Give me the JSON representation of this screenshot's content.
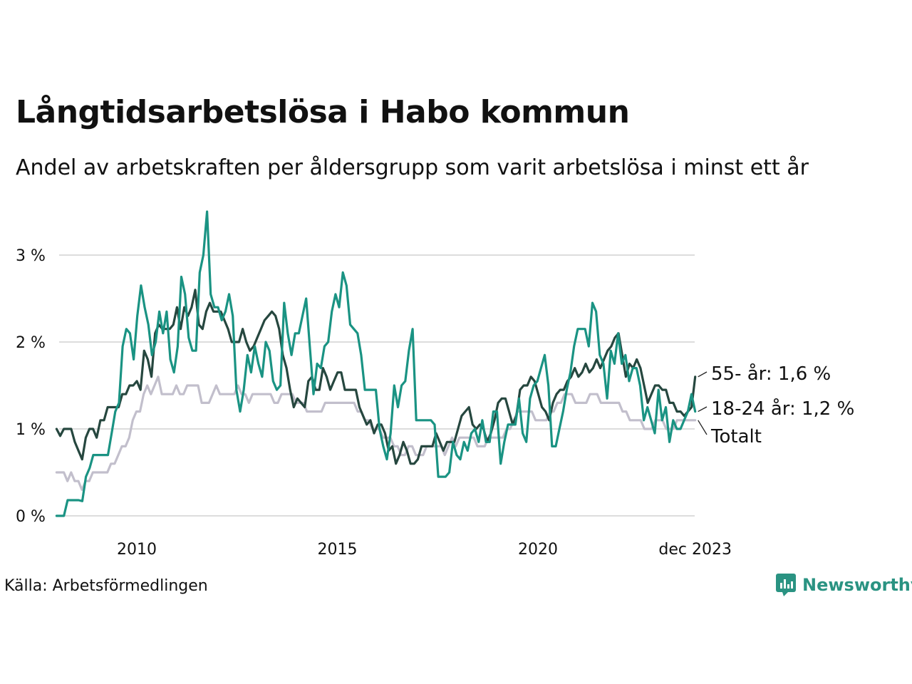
{
  "header": {
    "title": "Långtidsarbetslösa i Habo kommun",
    "subtitle": "Andel av arbetskraften per åldersgrupp som varit arbetslösa i minst ett år"
  },
  "footer": {
    "source": "Källa: Arbetsförmedlingen",
    "brand": "Newsworthy"
  },
  "colors": {
    "youth": "#1a9383",
    "senior": "#26473f",
    "total": "#c2bfcc",
    "grid": "#dddddd"
  },
  "chart_data": {
    "type": "line",
    "title": "Långtidsarbetslösa i Habo kommun",
    "subtitle": "Andel av arbetskraften per åldersgrupp som varit arbetslösa i minst ett år",
    "xlabel": "",
    "ylabel": "",
    "x_start": 2008.0,
    "x_step_years": 0.08333,
    "xlim": [
      2008.0,
      2023.92
    ],
    "ylim": [
      0,
      3.5
    ],
    "y_ticks": [
      0,
      1,
      2,
      3
    ],
    "y_tick_labels": [
      "0 %",
      "1 %",
      "2 %",
      "3 %"
    ],
    "x_ticks": [
      2010,
      2015,
      2020,
      2023.92
    ],
    "x_tick_labels": [
      "2010",
      "2015",
      "2020",
      "dec 2023"
    ],
    "grid": true,
    "series": [
      {
        "name": "Totalt",
        "key": "total",
        "end_label": "Totalt",
        "values": [
          0.5,
          0.5,
          0.5,
          0.4,
          0.5,
          0.4,
          0.4,
          0.3,
          0.4,
          0.4,
          0.5,
          0.5,
          0.5,
          0.5,
          0.5,
          0.6,
          0.6,
          0.7,
          0.8,
          0.8,
          0.9,
          1.1,
          1.2,
          1.2,
          1.4,
          1.5,
          1.4,
          1.5,
          1.6,
          1.4,
          1.4,
          1.4,
          1.4,
          1.5,
          1.4,
          1.4,
          1.5,
          1.5,
          1.5,
          1.5,
          1.3,
          1.3,
          1.3,
          1.4,
          1.5,
          1.4,
          1.4,
          1.4,
          1.4,
          1.4,
          1.5,
          1.4,
          1.4,
          1.3,
          1.4,
          1.4,
          1.4,
          1.4,
          1.4,
          1.4,
          1.3,
          1.3,
          1.4,
          1.4,
          1.4,
          1.4,
          1.3,
          1.3,
          1.3,
          1.2,
          1.2,
          1.2,
          1.2,
          1.2,
          1.3,
          1.3,
          1.3,
          1.3,
          1.3,
          1.3,
          1.3,
          1.3,
          1.3,
          1.2,
          1.2,
          1.1,
          1.1,
          1.0,
          1.0,
          1.0,
          0.9,
          0.9,
          0.9,
          0.8,
          0.8,
          0.7,
          0.7,
          0.8,
          0.8,
          0.7,
          0.7,
          0.7,
          0.8,
          0.8,
          0.8,
          0.8,
          0.8,
          0.7,
          0.8,
          0.9,
          0.8,
          0.9,
          0.9,
          0.9,
          0.9,
          0.9,
          0.8,
          0.8,
          0.8,
          0.9,
          0.9,
          0.9,
          0.9,
          0.9,
          1.0,
          1.0,
          1.1,
          1.2,
          1.2,
          1.2,
          1.2,
          1.2,
          1.1,
          1.1,
          1.1,
          1.1,
          1.2,
          1.2,
          1.3,
          1.3,
          1.4,
          1.4,
          1.4,
          1.3,
          1.3,
          1.3,
          1.3,
          1.4,
          1.4,
          1.4,
          1.3,
          1.3,
          1.3,
          1.3,
          1.3,
          1.3,
          1.2,
          1.2,
          1.1,
          1.1,
          1.1,
          1.1,
          1.0,
          1.0,
          1.0,
          1.1,
          1.1,
          1.1,
          1.0,
          1.0,
          1.0,
          1.1,
          1.1,
          1.1,
          1.1,
          1.1,
          1.1
        ]
      },
      {
        "name": "55- år",
        "key": "senior",
        "end_label": "55- år: 1,6 %",
        "values": [
          1.0,
          0.92,
          1.0,
          1.0,
          1.0,
          0.85,
          0.75,
          0.65,
          0.9,
          1.0,
          1.0,
          0.9,
          1.1,
          1.1,
          1.25,
          1.25,
          1.25,
          1.25,
          1.4,
          1.4,
          1.5,
          1.5,
          1.55,
          1.45,
          1.9,
          1.8,
          1.6,
          2.1,
          2.2,
          2.15,
          2.15,
          2.15,
          2.2,
          2.4,
          2.15,
          2.4,
          2.3,
          2.4,
          2.6,
          2.2,
          2.15,
          2.35,
          2.45,
          2.35,
          2.35,
          2.35,
          2.25,
          2.15,
          2.0,
          2.0,
          2.0,
          2.15,
          2.0,
          1.9,
          1.95,
          2.05,
          2.15,
          2.25,
          2.3,
          2.35,
          2.3,
          2.15,
          1.85,
          1.7,
          1.45,
          1.25,
          1.35,
          1.3,
          1.25,
          1.55,
          1.6,
          1.45,
          1.45,
          1.7,
          1.6,
          1.45,
          1.55,
          1.65,
          1.65,
          1.45,
          1.45,
          1.45,
          1.45,
          1.25,
          1.15,
          1.05,
          1.1,
          0.95,
          1.05,
          1.05,
          0.95,
          0.75,
          0.8,
          0.6,
          0.7,
          0.85,
          0.75,
          0.6,
          0.6,
          0.65,
          0.8,
          0.8,
          0.8,
          0.8,
          0.95,
          0.85,
          0.75,
          0.85,
          0.85,
          0.85,
          1.0,
          1.15,
          1.2,
          1.25,
          1.05,
          1.0,
          1.05,
          1.0,
          0.85,
          0.95,
          1.1,
          1.3,
          1.35,
          1.35,
          1.2,
          1.05,
          1.15,
          1.45,
          1.5,
          1.5,
          1.6,
          1.55,
          1.4,
          1.25,
          1.2,
          1.1,
          1.3,
          1.4,
          1.45,
          1.45,
          1.55,
          1.6,
          1.7,
          1.6,
          1.65,
          1.75,
          1.65,
          1.7,
          1.8,
          1.7,
          1.8,
          1.9,
          1.95,
          2.05,
          2.1,
          1.85,
          1.6,
          1.75,
          1.7,
          1.8,
          1.7,
          1.5,
          1.3,
          1.4,
          1.5,
          1.5,
          1.45,
          1.45,
          1.3,
          1.3,
          1.2,
          1.2,
          1.15,
          1.2,
          1.25,
          1.6
        ]
      },
      {
        "name": "18-24 år",
        "key": "youth",
        "end_label": "18-24 år: 1,2 %",
        "values": [
          0.0,
          0.0,
          0.0,
          0.18,
          0.18,
          0.18,
          0.18,
          0.17,
          0.45,
          0.55,
          0.7,
          0.7,
          0.7,
          0.7,
          0.7,
          0.95,
          1.2,
          1.3,
          1.95,
          2.15,
          2.1,
          1.8,
          2.3,
          2.65,
          2.4,
          2.2,
          1.85,
          2.0,
          2.35,
          2.1,
          2.35,
          1.8,
          1.65,
          1.95,
          2.75,
          2.55,
          2.05,
          1.9,
          1.9,
          2.8,
          3.0,
          3.5,
          2.55,
          2.4,
          2.4,
          2.25,
          2.35,
          2.55,
          2.3,
          1.45,
          1.2,
          1.45,
          1.85,
          1.65,
          1.95,
          1.75,
          1.6,
          2.0,
          1.9,
          1.55,
          1.45,
          1.5,
          2.45,
          2.1,
          1.85,
          2.1,
          2.1,
          2.3,
          2.5,
          1.95,
          1.4,
          1.75,
          1.7,
          1.95,
          2.0,
          2.35,
          2.55,
          2.4,
          2.8,
          2.65,
          2.2,
          2.15,
          2.1,
          1.85,
          1.45,
          1.45,
          1.45,
          1.45,
          1.0,
          0.8,
          0.65,
          0.95,
          1.5,
          1.25,
          1.5,
          1.55,
          1.9,
          2.15,
          1.1,
          1.1,
          1.1,
          1.1,
          1.1,
          1.05,
          0.45,
          0.45,
          0.45,
          0.5,
          0.85,
          0.7,
          0.65,
          0.85,
          0.75,
          0.95,
          1.0,
          0.85,
          1.1,
          0.85,
          0.85,
          1.2,
          1.2,
          0.6,
          0.85,
          1.05,
          1.05,
          1.05,
          1.35,
          0.95,
          0.85,
          1.35,
          1.5,
          1.55,
          1.7,
          1.85,
          1.5,
          0.8,
          0.8,
          1.0,
          1.2,
          1.45,
          1.65,
          1.95,
          2.15,
          2.15,
          2.15,
          1.95,
          2.45,
          2.35,
          1.85,
          1.75,
          1.35,
          1.9,
          1.75,
          2.1,
          1.75,
          1.85,
          1.55,
          1.7,
          1.7,
          1.5,
          1.1,
          1.25,
          1.1,
          0.95,
          1.45,
          1.1,
          1.25,
          0.85,
          1.1,
          1.0,
          1.0,
          1.1,
          1.2,
          1.4,
          1.2
        ]
      }
    ]
  }
}
